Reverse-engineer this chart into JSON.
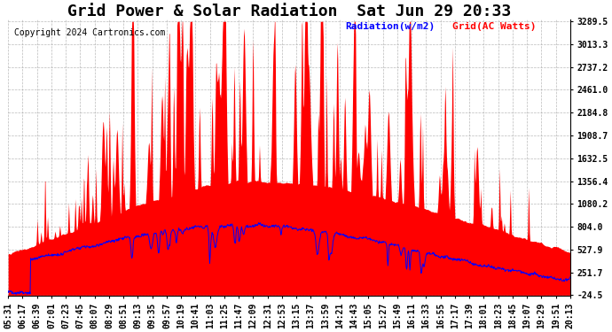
{
  "title": "Grid Power & Solar Radiation  Sat Jun 29 20:33",
  "copyright": "Copyright 2024 Cartronics.com",
  "legend_radiation": "Radiation(w/m2)",
  "legend_grid": "Grid(AC Watts)",
  "legend_radiation_color": "#0000ff",
  "legend_grid_color": "#ff0000",
  "background_color": "#ffffff",
  "plot_bg_color": "#ffffff",
  "grid_color": "#aaaaaa",
  "yticks": [
    3289.5,
    3013.3,
    2737.2,
    2461.0,
    2184.8,
    1908.7,
    1632.5,
    1356.4,
    1080.2,
    804.0,
    527.9,
    251.7,
    -24.5
  ],
  "ymin": -24.5,
  "ymax": 3289.5,
  "xtick_labels": [
    "05:31",
    "06:17",
    "06:39",
    "07:01",
    "07:23",
    "07:45",
    "08:07",
    "08:29",
    "08:51",
    "09:13",
    "09:35",
    "09:57",
    "10:19",
    "10:41",
    "11:03",
    "11:25",
    "11:47",
    "12:09",
    "12:31",
    "12:53",
    "13:15",
    "13:37",
    "13:59",
    "14:21",
    "14:43",
    "15:05",
    "15:27",
    "15:49",
    "16:11",
    "16:33",
    "16:55",
    "17:17",
    "17:39",
    "18:01",
    "18:23",
    "18:45",
    "19:07",
    "19:29",
    "19:51",
    "20:13"
  ],
  "title_fontsize": 13,
  "tick_fontsize": 7,
  "copyright_fontsize": 7,
  "legend_fontsize": 8
}
